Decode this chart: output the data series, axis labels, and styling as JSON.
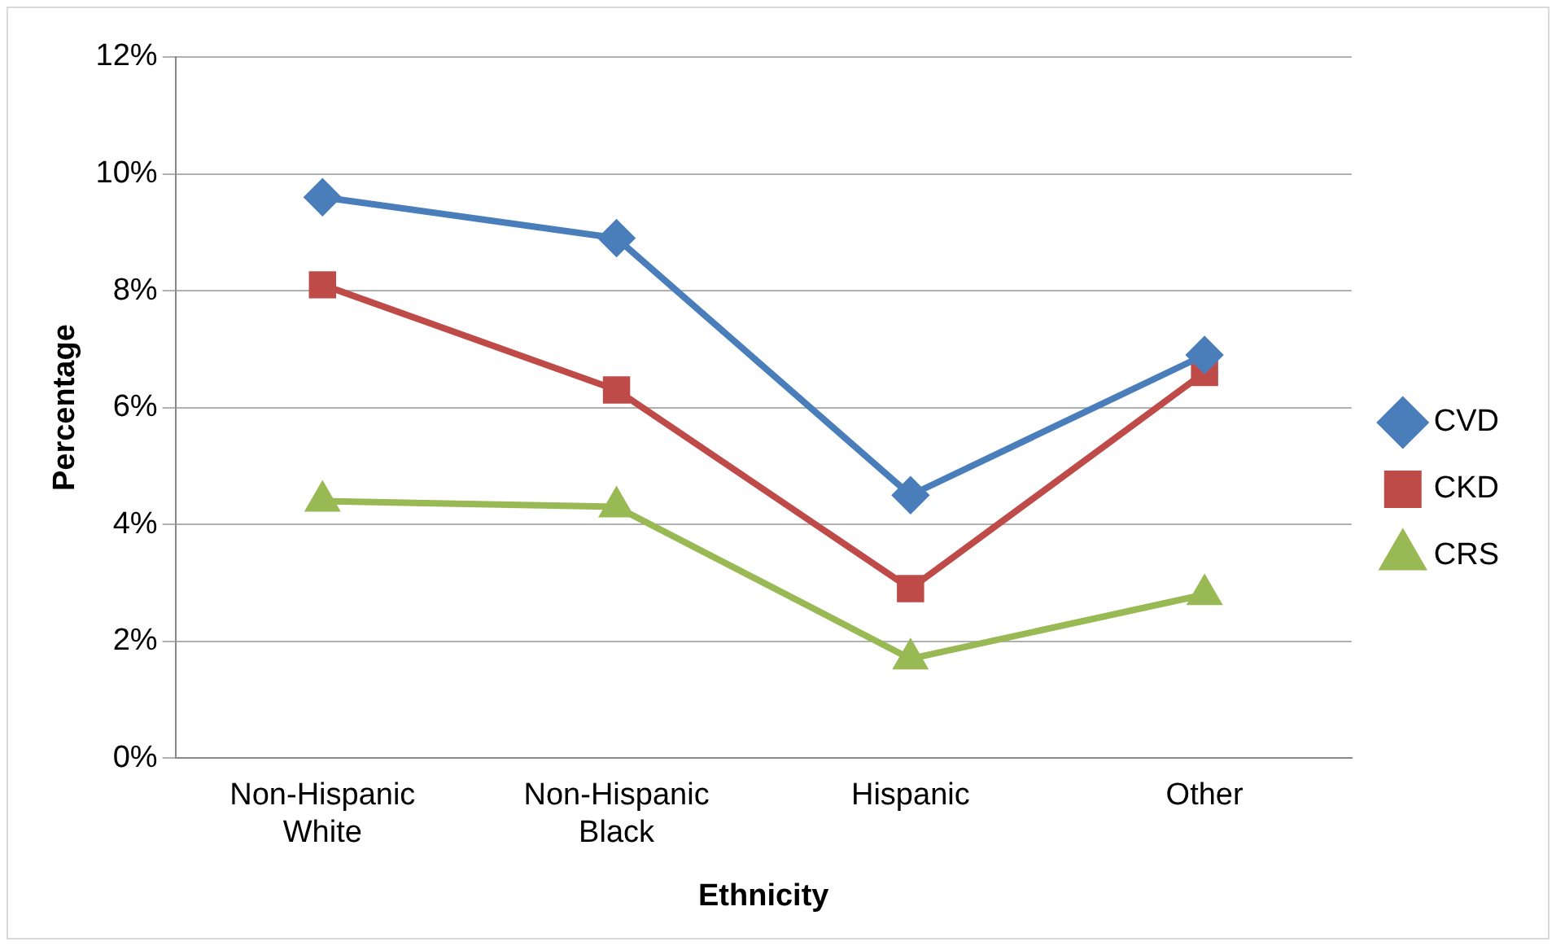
{
  "chart_data": {
    "type": "line",
    "xlabel": "Ethnicity",
    "ylabel": "Percentage",
    "categories": [
      "Non-Hispanic White",
      "Non-Hispanic Black",
      "Hispanic",
      "Other"
    ],
    "series": [
      {
        "name": "CVD",
        "color": "#4a7ebb",
        "marker": "diamond",
        "values": [
          9.6,
          8.9,
          4.5,
          6.9
        ]
      },
      {
        "name": "CKD",
        "color": "#be4b48",
        "marker": "square",
        "values": [
          8.1,
          6.3,
          2.9,
          6.6
        ]
      },
      {
        "name": "CRS",
        "color": "#98b954",
        "marker": "triangle",
        "values": [
          4.4,
          4.3,
          1.7,
          2.8
        ]
      }
    ],
    "ylim": [
      0,
      12
    ],
    "yticks": [
      {
        "value": 0,
        "label": "0%"
      },
      {
        "value": 2,
        "label": "2%"
      },
      {
        "value": 4,
        "label": "4%"
      },
      {
        "value": 6,
        "label": "6%"
      },
      {
        "value": 8,
        "label": "8%"
      },
      {
        "value": 10,
        "label": "10%"
      },
      {
        "value": 12,
        "label": "12%"
      }
    ],
    "grid": "y",
    "legend": "right"
  }
}
